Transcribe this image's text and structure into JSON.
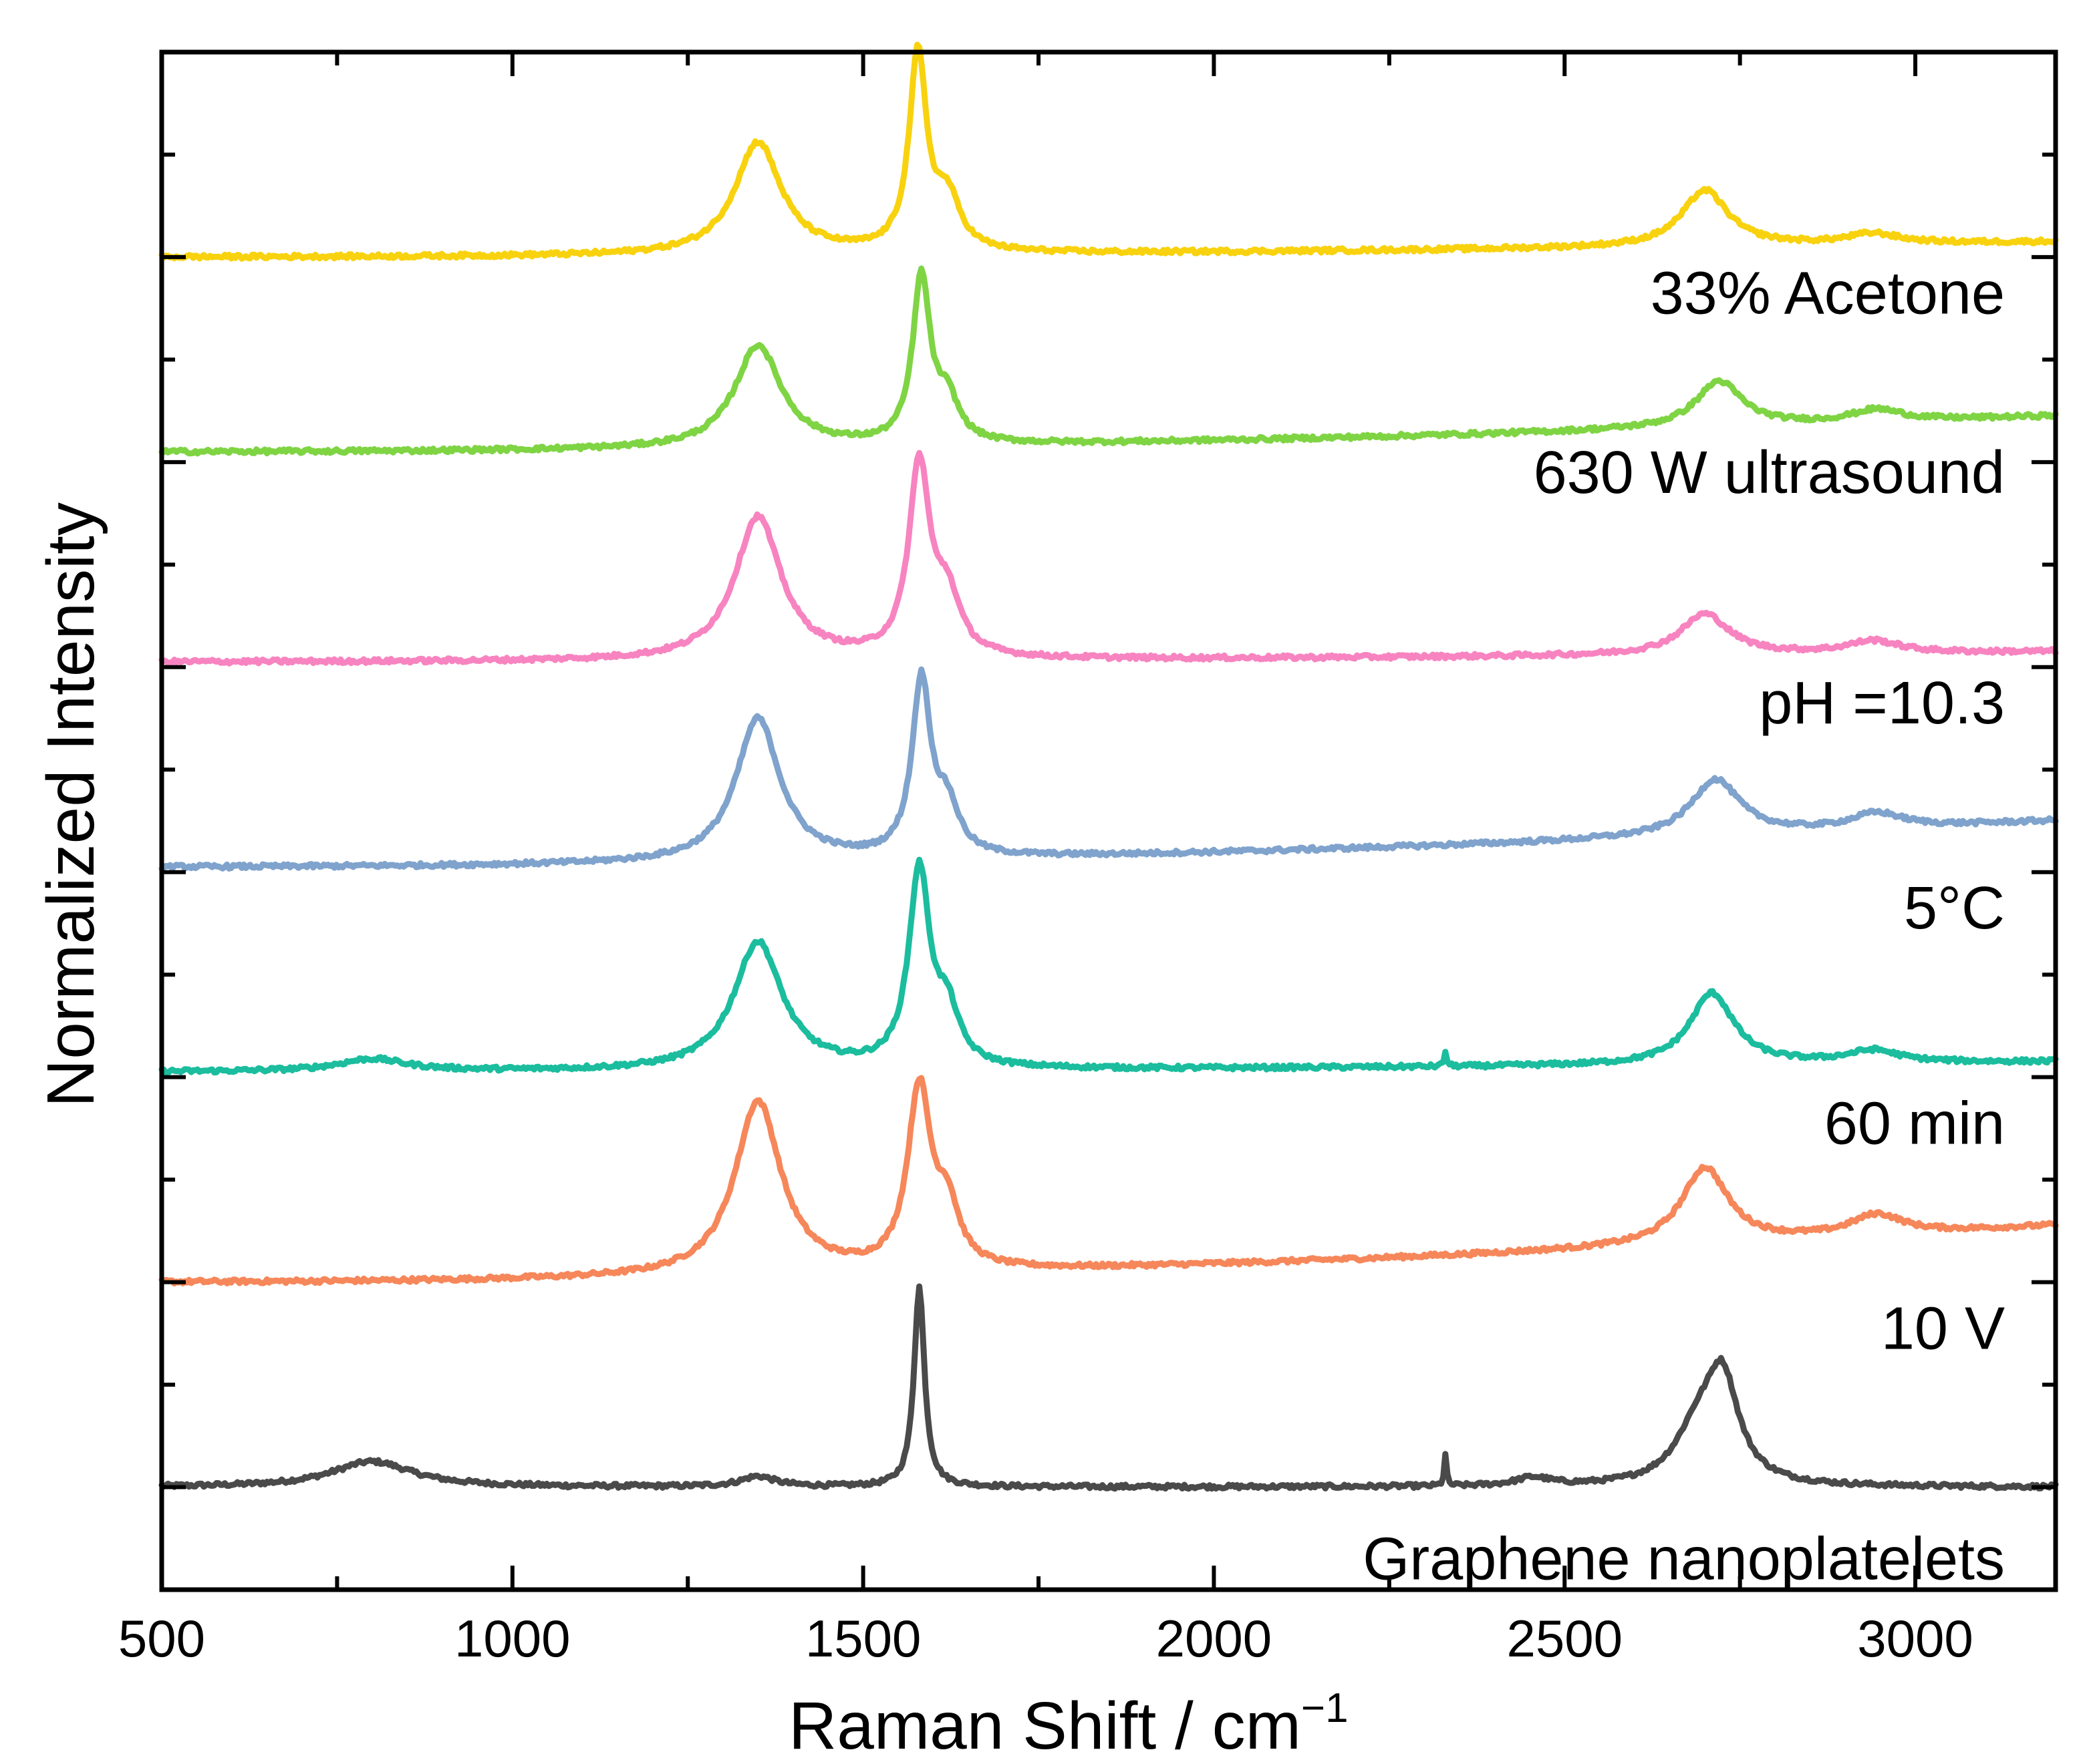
{
  "chart_data": {
    "type": "line",
    "xlabel": "Raman Shift / cm−1",
    "ylabel": "Normalized Intensity",
    "xlim": [
      500,
      3200
    ],
    "ylim": [
      0,
      15
    ],
    "x_ticks": [
      500,
      1000,
      1500,
      2000,
      2500,
      3000
    ],
    "y_ticks_visible": false,
    "legend": "labels placed on right side above each trace",
    "series": [
      {
        "name": "Graphene nanoplatelets",
        "color": "#4a4a4a",
        "baseline": 1.0,
        "baseline_end": 1.0,
        "peaks": [
          [
            800,
            0.25,
            70
          ],
          [
            1350,
            0.1,
            30
          ],
          [
            1580,
            1.95,
            9
          ],
          [
            2455,
            0.08,
            30
          ],
          [
            2690,
            0.5,
            40
          ],
          [
            2725,
            0.95,
            28
          ],
          [
            2330,
            0.3,
            2
          ]
        ]
      },
      {
        "name": "10 V",
        "color": "#f6875a",
        "baseline": 3.0,
        "baseline_end": 3.55,
        "peaks": [
          [
            1350,
            1.7,
            40
          ],
          [
            1580,
            1.75,
            20
          ],
          [
            1620,
            0.55,
            20
          ],
          [
            2700,
            0.75,
            40
          ],
          [
            2945,
            0.2,
            45
          ]
        ]
      },
      {
        "name": "60 min",
        "color": "#1bbd9e",
        "baseline": 5.05,
        "baseline_end": 5.15,
        "peaks": [
          [
            800,
            0.12,
            60
          ],
          [
            1350,
            1.25,
            42
          ],
          [
            1580,
            1.9,
            18
          ],
          [
            1620,
            0.5,
            20
          ],
          [
            2330,
            0.15,
            2
          ],
          [
            2710,
            0.7,
            38
          ],
          [
            2940,
            0.12,
            45
          ]
        ]
      },
      {
        "name": "5°C",
        "color": "#7fa3cc",
        "baseline": 7.05,
        "baseline_end": 7.5,
        "peaks": [
          [
            1350,
            1.4,
            38
          ],
          [
            1583,
            1.7,
            16
          ],
          [
            1620,
            0.45,
            20
          ],
          [
            2715,
            0.55,
            42
          ],
          [
            2945,
            0.15,
            45
          ]
        ]
      },
      {
        "name": "pH =10.3",
        "color": "#f784c0",
        "baseline": 9.05,
        "baseline_end": 9.15,
        "peaks": [
          [
            1350,
            1.4,
            40
          ],
          [
            1580,
            1.85,
            18
          ],
          [
            1620,
            0.55,
            22
          ],
          [
            2700,
            0.4,
            42
          ],
          [
            2940,
            0.12,
            45
          ]
        ]
      },
      {
        "name": "630 W ultrasound",
        "color": "#7fd444",
        "baseline": 11.1,
        "baseline_end": 11.45,
        "peaks": [
          [
            1350,
            1.0,
            40
          ],
          [
            1583,
            1.6,
            15
          ],
          [
            1620,
            0.4,
            20
          ],
          [
            2720,
            0.45,
            40
          ],
          [
            2945,
            0.12,
            45
          ]
        ]
      },
      {
        "name": "33% Acetone",
        "color": "#f8d20e",
        "baseline": 13.0,
        "baseline_end": 13.15,
        "peaks": [
          [
            1350,
            1.1,
            40
          ],
          [
            1578,
            1.9,
            15
          ],
          [
            1620,
            0.5,
            22
          ],
          [
            2700,
            0.55,
            40
          ],
          [
            2940,
            0.1,
            45
          ]
        ]
      }
    ],
    "labels": [
      {
        "text": "33% Acetone",
        "y": 12.45
      },
      {
        "text": "630 W ultrasound",
        "y": 10.7
      },
      {
        "text": "pH =10.3",
        "y": 8.45
      },
      {
        "text": "5°C",
        "y": 6.45
      },
      {
        "text": "60 min",
        "y": 4.35
      },
      {
        "text": "10 V",
        "y": 2.35
      },
      {
        "text": "Graphene nanoplatelets",
        "y": 0.1
      }
    ]
  }
}
